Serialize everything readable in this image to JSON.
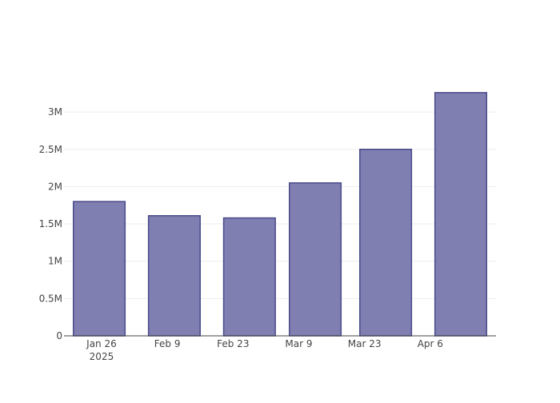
{
  "chart_data": {
    "type": "bar",
    "x_axis_type": "date",
    "title": "",
    "xlabel": "",
    "ylabel": "",
    "grid": true,
    "legend": "none",
    "bars": [
      {
        "x_start": "2025-01-20",
        "x_end": "2025-01-31",
        "value": 1800000
      },
      {
        "x_start": "2025-02-05",
        "x_end": "2025-02-16",
        "value": 1610000
      },
      {
        "x_start": "2025-02-21",
        "x_end": "2025-03-04",
        "value": 1580000
      },
      {
        "x_start": "2025-03-07",
        "x_end": "2025-03-18",
        "value": 2050000
      },
      {
        "x_start": "2025-03-22",
        "x_end": "2025-04-02",
        "value": 2500000
      },
      {
        "x_start": "2025-04-07",
        "x_end": "2025-04-18",
        "value": 3260000
      }
    ],
    "x_ticks": [
      {
        "date": "2025-01-26",
        "label": "Jan 26",
        "sublabel": "2025"
      },
      {
        "date": "2025-02-09",
        "label": "Feb 9",
        "sublabel": ""
      },
      {
        "date": "2025-02-23",
        "label": "Feb 23",
        "sublabel": ""
      },
      {
        "date": "2025-03-09",
        "label": "Mar 9",
        "sublabel": ""
      },
      {
        "date": "2025-03-23",
        "label": "Mar 23",
        "sublabel": ""
      },
      {
        "date": "2025-04-06",
        "label": "Apr 6",
        "sublabel": ""
      }
    ],
    "xlim": [
      "2025-01-18",
      "2025-04-20"
    ],
    "y_ticks": [
      {
        "value": 0,
        "label": "0"
      },
      {
        "value": 500000,
        "label": "0.5M"
      },
      {
        "value": 1000000,
        "label": "1M"
      },
      {
        "value": 1500000,
        "label": "1.5M"
      },
      {
        "value": 2000000,
        "label": "2M"
      },
      {
        "value": 2500000,
        "label": "2.5M"
      },
      {
        "value": 3000000,
        "label": "3M"
      }
    ],
    "ylim": [
      0,
      3430000
    ],
    "colors": {
      "bar_fill": "#7f7fb2",
      "bar_stroke": "#4a4a8a",
      "grid": "#eeeeee",
      "axis": "#444444",
      "text": "#444444"
    }
  }
}
